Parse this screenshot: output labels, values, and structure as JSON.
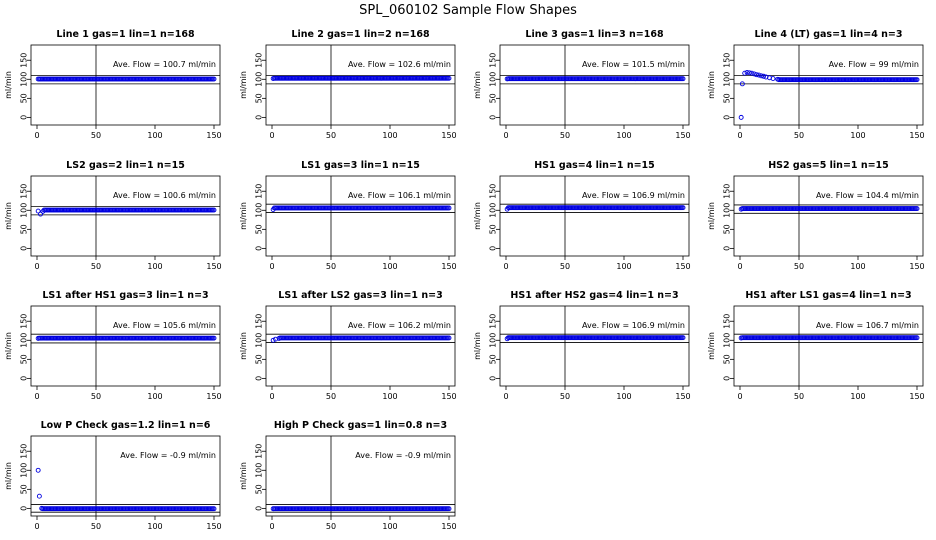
{
  "figure": {
    "title": "SPL_060102  Sample Flow Shapes"
  },
  "colors": {
    "points": "#0000e0",
    "axes": "#000000",
    "text": "#000000"
  },
  "chart_data": [
    {
      "type": "scatter",
      "title": "Line 1 gas=1 lin=1 n=168",
      "ylabel": "ml/min",
      "annotation": "Ave. Flow =  100.7  ml/min",
      "xlim": [
        0,
        150
      ],
      "ylim": [
        -20,
        190
      ],
      "xticks": [
        "0",
        "50",
        "100",
        "150"
      ],
      "yticks": [
        "0",
        "50",
        "100",
        "150"
      ],
      "hlines": [
        88,
        110
      ],
      "vline": 50,
      "first_points": [
        [
          1,
          100.7
        ]
      ],
      "steady": 100.7,
      "grid": false
    },
    {
      "type": "scatter",
      "title": "Line 2 gas=1 lin=2 n=168",
      "ylabel": "ml/min",
      "annotation": "Ave. Flow =  102.6  ml/min",
      "xlim": [
        0,
        150
      ],
      "ylim": [
        -20,
        190
      ],
      "xticks": [
        "0",
        "50",
        "100",
        "150"
      ],
      "yticks": [
        "0",
        "50",
        "100",
        "150"
      ],
      "hlines": [
        88,
        110
      ],
      "vline": 50,
      "first_points": [
        [
          1,
          102
        ]
      ],
      "steady": 102.6,
      "grid": false
    },
    {
      "type": "scatter",
      "title": "Line 3 gas=1 lin=3 n=168",
      "ylabel": "ml/min",
      "annotation": "Ave. Flow =  101.5  ml/min",
      "xlim": [
        0,
        150
      ],
      "ylim": [
        -20,
        190
      ],
      "xticks": [
        "0",
        "50",
        "100",
        "150"
      ],
      "yticks": [
        "0",
        "50",
        "100",
        "150"
      ],
      "hlines": [
        88,
        110
      ],
      "vline": 50,
      "first_points": [
        [
          1,
          101
        ]
      ],
      "steady": 101.5,
      "grid": false
    },
    {
      "type": "scatter",
      "title": "Line 4 (LT) gas=1 lin=4 n=3",
      "ylabel": "ml/min",
      "annotation": "Ave. Flow =  99  ml/min",
      "xlim": [
        0,
        150
      ],
      "ylim": [
        -20,
        190
      ],
      "xticks": [
        "0",
        "50",
        "100",
        "150"
      ],
      "yticks": [
        "0",
        "50",
        "100",
        "150"
      ],
      "hlines": [
        88,
        110
      ],
      "vline": 50,
      "first_points": [
        [
          1,
          0
        ],
        [
          2,
          88
        ],
        [
          4,
          116
        ],
        [
          6,
          118
        ],
        [
          8,
          117
        ],
        [
          10,
          116
        ],
        [
          12,
          114
        ],
        [
          14,
          112
        ],
        [
          16,
          111
        ],
        [
          18,
          109
        ],
        [
          20,
          108
        ],
        [
          22,
          106
        ],
        [
          25,
          104
        ],
        [
          28,
          102
        ],
        [
          32,
          100
        ]
      ],
      "steady": 99,
      "grid": false
    },
    {
      "type": "scatter",
      "title": "LS2 gas=2 lin=1 n=15",
      "ylabel": "ml/min",
      "annotation": "Ave. Flow =  100.6  ml/min",
      "xlim": [
        0,
        150
      ],
      "ylim": [
        -20,
        190
      ],
      "xticks": [
        "0",
        "50",
        "100",
        "150"
      ],
      "yticks": [
        "0",
        "50",
        "100",
        "150"
      ],
      "hlines": [
        88,
        110
      ],
      "vline": 50,
      "first_points": [
        [
          1,
          98
        ],
        [
          3,
          90
        ],
        [
          5,
          97
        ]
      ],
      "steady": 100.6,
      "grid": false
    },
    {
      "type": "scatter",
      "title": "LS1 gas=3 lin=1 n=15",
      "ylabel": "ml/min",
      "annotation": "Ave. Flow =  106.1  ml/min",
      "xlim": [
        0,
        150
      ],
      "ylim": [
        -20,
        190
      ],
      "xticks": [
        "0",
        "50",
        "100",
        "150"
      ],
      "yticks": [
        "0",
        "50",
        "100",
        "150"
      ],
      "hlines": [
        94,
        116
      ],
      "vline": 50,
      "first_points": [
        [
          1,
          102
        ]
      ],
      "steady": 106.1,
      "grid": false
    },
    {
      "type": "scatter",
      "title": "HS1 gas=4 lin=1 n=15",
      "ylabel": "ml/min",
      "annotation": "Ave. Flow =  106.9  ml/min",
      "xlim": [
        0,
        150
      ],
      "ylim": [
        -20,
        190
      ],
      "xticks": [
        "0",
        "50",
        "100",
        "150"
      ],
      "yticks": [
        "0",
        "50",
        "100",
        "150"
      ],
      "hlines": [
        94,
        116
      ],
      "vline": 50,
      "first_points": [
        [
          1,
          103
        ]
      ],
      "steady": 106.9,
      "grid": false
    },
    {
      "type": "scatter",
      "title": "HS2 gas=5 lin=1 n=15",
      "ylabel": "ml/min",
      "annotation": "Ave. Flow =  104.4  ml/min",
      "xlim": [
        0,
        150
      ],
      "ylim": [
        -20,
        190
      ],
      "xticks": [
        "0",
        "50",
        "100",
        "150"
      ],
      "yticks": [
        "0",
        "50",
        "100",
        "150"
      ],
      "hlines": [
        92,
        114
      ],
      "vline": 50,
      "first_points": [
        [
          1,
          103
        ]
      ],
      "steady": 104.4,
      "grid": false
    },
    {
      "type": "scatter",
      "title": "LS1 after HS1 gas=3 lin=1 n=3",
      "ylabel": "ml/min",
      "annotation": "Ave. Flow =  105.6  ml/min",
      "xlim": [
        0,
        150
      ],
      "ylim": [
        -20,
        190
      ],
      "xticks": [
        "0",
        "50",
        "100",
        "150"
      ],
      "yticks": [
        "0",
        "50",
        "100",
        "150"
      ],
      "hlines": [
        93,
        116
      ],
      "vline": 50,
      "first_points": [
        [
          1,
          105
        ]
      ],
      "steady": 105.6,
      "grid": false
    },
    {
      "type": "scatter",
      "title": "LS1 after LS2 gas=3 lin=1 n=3",
      "ylabel": "ml/min",
      "annotation": "Ave. Flow =  106.2  ml/min",
      "xlim": [
        0,
        150
      ],
      "ylim": [
        -20,
        190
      ],
      "xticks": [
        "0",
        "50",
        "100",
        "150"
      ],
      "yticks": [
        "0",
        "50",
        "100",
        "150"
      ],
      "hlines": [
        94,
        116
      ],
      "vline": 50,
      "first_points": [
        [
          1,
          100
        ],
        [
          3,
          103
        ],
        [
          6,
          105
        ]
      ],
      "steady": 106.2,
      "grid": false
    },
    {
      "type": "scatter",
      "title": "HS1 after HS2 gas=4 lin=1 n=3",
      "ylabel": "ml/min",
      "annotation": "Ave. Flow =  106.9  ml/min",
      "xlim": [
        0,
        150
      ],
      "ylim": [
        -20,
        190
      ],
      "xticks": [
        "0",
        "50",
        "100",
        "150"
      ],
      "yticks": [
        "0",
        "50",
        "100",
        "150"
      ],
      "hlines": [
        94,
        116
      ],
      "vline": 50,
      "first_points": [
        [
          1,
          104
        ]
      ],
      "steady": 106.9,
      "grid": false
    },
    {
      "type": "scatter",
      "title": "HS1 after LS1 gas=4 lin=1 n=3",
      "ylabel": "ml/min",
      "annotation": "Ave. Flow =  106.7  ml/min",
      "xlim": [
        0,
        150
      ],
      "ylim": [
        -20,
        190
      ],
      "xticks": [
        "0",
        "50",
        "100",
        "150"
      ],
      "yticks": [
        "0",
        "50",
        "100",
        "150"
      ],
      "hlines": [
        94,
        116
      ],
      "vline": 50,
      "first_points": [
        [
          1,
          106
        ]
      ],
      "steady": 106.7,
      "grid": false
    },
    {
      "type": "scatter",
      "title": "Low P Check gas=1.2 lin=1 n=6",
      "ylabel": "ml/min",
      "annotation": "Ave. Flow =  -0.9  ml/min",
      "xlim": [
        0,
        150
      ],
      "ylim": [
        -20,
        190
      ],
      "xticks": [
        "0",
        "50",
        "100",
        "150"
      ],
      "yticks": [
        "0",
        "50",
        "100",
        "150"
      ],
      "hlines": [
        -10,
        10
      ],
      "vline": 50,
      "first_points": [
        [
          1,
          100
        ],
        [
          2,
          32
        ],
        [
          4,
          0
        ]
      ],
      "steady": -0.9,
      "grid": false
    },
    {
      "type": "scatter",
      "title": "High P Check gas=1 lin=0.8 n=3",
      "ylabel": "ml/min",
      "annotation": "Ave. Flow =  -0.9  ml/min",
      "xlim": [
        0,
        150
      ],
      "ylim": [
        -20,
        190
      ],
      "xticks": [
        "0",
        "50",
        "100",
        "150"
      ],
      "yticks": [
        "0",
        "50",
        "100",
        "150"
      ],
      "hlines": [
        -10,
        10
      ],
      "vline": 50,
      "first_points": [
        [
          1,
          -1
        ]
      ],
      "steady": -0.9,
      "grid": false
    }
  ]
}
